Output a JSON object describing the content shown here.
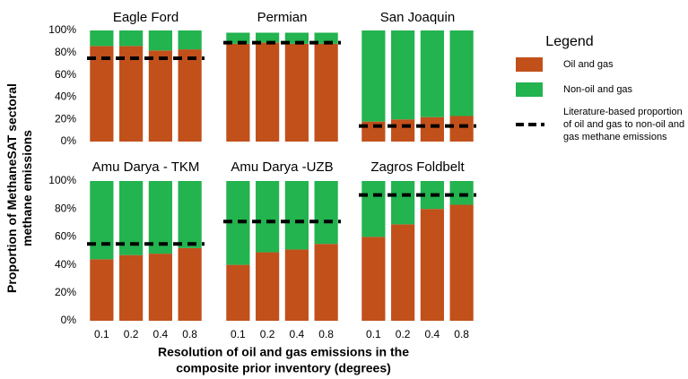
{
  "ylabel": [
    "Proportion of MethaneSAT sectoral",
    "methane emissions"
  ],
  "xlabel": [
    "Resolution of oil and gas emissions in the",
    "composite prior inventory (degrees)"
  ],
  "legend": {
    "title": "Legend",
    "series": [
      {
        "name": "Oil and gas",
        "color": "#c1501b"
      },
      {
        "name": "Non-oil and gas",
        "color": "#23b34f"
      }
    ],
    "reference": {
      "name": [
        "Literature-based proportion",
        "of oil and gas to non-oil and",
        "gas methane emissions"
      ],
      "color": "#000000"
    }
  },
  "chart_data": [
    {
      "type": "bar",
      "stacked": true,
      "title": "Eagle Ford",
      "ylim": [
        0,
        100
      ],
      "yticks": [
        {
          "value": 0,
          "label": "0%"
        },
        {
          "value": 20,
          "label": "20%"
        },
        {
          "value": 40,
          "label": "40%"
        },
        {
          "value": 60,
          "label": "60%"
        },
        {
          "value": 80,
          "label": "80%"
        },
        {
          "value": 100,
          "label": "100%"
        }
      ],
      "series": [
        {
          "values": [
            86,
            86,
            82,
            83
          ]
        },
        {
          "values": [
            14,
            14,
            18,
            17
          ]
        }
      ],
      "reference": 75
    },
    {
      "type": "bar",
      "stacked": true,
      "title": "Permian",
      "ylim": [
        0,
        100
      ],
      "series": [
        {
          "values": [
            88,
            89,
            88,
            88
          ]
        },
        {
          "values": [
            10,
            9,
            10,
            10
          ]
        }
      ],
      "reference": 89
    },
    {
      "type": "bar",
      "stacked": true,
      "title": "San Joaquin",
      "ylim": [
        0,
        100
      ],
      "series": [
        {
          "values": [
            18,
            20,
            22,
            23
          ]
        },
        {
          "values": [
            82,
            80,
            78,
            77
          ]
        }
      ],
      "reference": 14
    },
    {
      "type": "bar",
      "stacked": true,
      "title": "Amu Darya - TKM",
      "ylim": [
        0,
        100
      ],
      "yticks": [
        {
          "value": 0,
          "label": "0%"
        },
        {
          "value": 20,
          "label": "20%"
        },
        {
          "value": 40,
          "label": "40%"
        },
        {
          "value": 60,
          "label": "60%"
        },
        {
          "value": 80,
          "label": "80%"
        },
        {
          "value": 100,
          "label": "100%"
        }
      ],
      "categories": [
        "0.1",
        "0.2",
        "0.4",
        "0.8"
      ],
      "series": [
        {
          "values": [
            44,
            47,
            48,
            52
          ]
        },
        {
          "values": [
            56,
            53,
            52,
            48
          ]
        }
      ],
      "reference": 55
    },
    {
      "type": "bar",
      "stacked": true,
      "title": "Amu Darya -UZB",
      "ylim": [
        0,
        100
      ],
      "categories": [
        "0.1",
        "0.2",
        "0.4",
        "0.8"
      ],
      "series": [
        {
          "values": [
            40,
            49,
            51,
            55
          ]
        },
        {
          "values": [
            60,
            51,
            49,
            45
          ]
        }
      ],
      "reference": 71
    },
    {
      "type": "bar",
      "stacked": true,
      "title": "Zagros Foldbelt",
      "ylim": [
        0,
        100
      ],
      "categories": [
        "0.1",
        "0.2",
        "0.4",
        "0.8"
      ],
      "series": [
        {
          "values": [
            60,
            69,
            80,
            83
          ]
        },
        {
          "values": [
            40,
            31,
            20,
            17
          ]
        }
      ],
      "reference": 90
    }
  ]
}
